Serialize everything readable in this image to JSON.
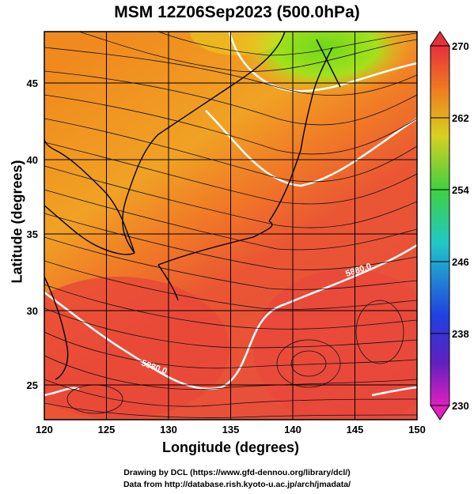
{
  "title": "MSM 12Z06Sep2023 (500.0hPa)",
  "xaxis": {
    "label": "Longitude (degrees)",
    "ticks": [
      "120",
      "125",
      "130",
      "135",
      "140",
      "145",
      "150"
    ],
    "range": [
      120,
      150
    ]
  },
  "yaxis": {
    "label": "Latitude  (degrees)",
    "ticks": [
      "25",
      "30",
      "35",
      "40",
      "45"
    ],
    "range": [
      22.5,
      47.5
    ]
  },
  "colorbar": {
    "ticks": [
      "270",
      "262",
      "254",
      "246",
      "238",
      "230"
    ],
    "range": [
      230,
      270
    ]
  },
  "contour_labels": [
    "5880.0",
    "5880.0"
  ],
  "credits": [
    "Drawing by DCL (https://www.gfd-dennou.org/library/dcl/)",
    "Data from http://database.rish.kyoto-u.ac.jp/arch/jmadata/"
  ],
  "colors": {
    "warm": "#e8473a",
    "orange": "#f0a020",
    "green": "#7cd21e",
    "blue": "#2233cc",
    "magenta": "#e030c0"
  }
}
